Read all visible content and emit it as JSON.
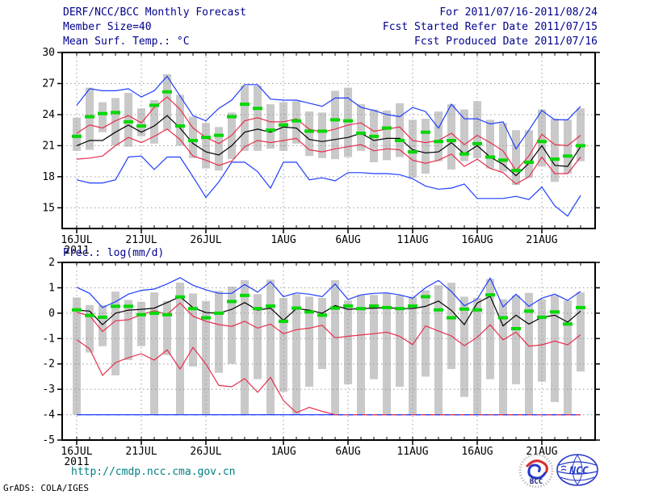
{
  "header": {
    "left_lines": [
      "DERF/NCC/BCC Monthly Forecast",
      "Member Size=40"
    ],
    "right_lines": [
      "For 2011/07/16-2011/08/24",
      "Fcst Started Refer Date 2011/07/15",
      "Fcst Produced Date 2011/07/16"
    ]
  },
  "footer": {
    "url": "http://cmdp.ncc.cma.gov.cn",
    "credit": "GrADS: COLA/IGES",
    "logos": [
      {
        "name": "BCC",
        "label": "BCC"
      },
      {
        "name": "NCC",
        "label": "NCC"
      }
    ]
  },
  "colors": {
    "header": "#00008b",
    "url": "#008080",
    "frame": "#000000",
    "grid": "#999999",
    "bar": "#c9c9c9",
    "blue": "#1e3cff",
    "red": "#e62e4c",
    "black": "#000000",
    "green": "#00d800"
  },
  "chart_data": [
    {
      "type": "line",
      "title": "Mean Surf. Temp.: °C",
      "ylim": [
        13,
        30
      ],
      "yticks": [
        15,
        18,
        21,
        24,
        27,
        30
      ],
      "x_days": 40,
      "x_ticks": [
        {
          "label": "16JUL",
          "sub": "2011",
          "day": 0
        },
        {
          "label": "21JUL",
          "day": 5
        },
        {
          "label": "26JUL",
          "day": 10
        },
        {
          "label": "1AUG",
          "day": 16
        },
        {
          "label": "6AUG",
          "day": 21
        },
        {
          "label": "11AUG",
          "day": 26
        },
        {
          "label": "16AUG",
          "day": 31
        },
        {
          "label": "21AUG",
          "day": 36
        }
      ],
      "bars": {
        "name": "ensemble-spread",
        "lo": [
          20.5,
          20.6,
          22.3,
          21.0,
          20.9,
          21.9,
          21.2,
          22.5,
          21.0,
          19.8,
          18.8,
          18.6,
          19.7,
          20.5,
          20.5,
          20.7,
          20.5,
          21.2,
          20.0,
          19.8,
          19.7,
          19.9,
          20.5,
          19.4,
          19.6,
          19.9,
          17.9,
          18.3,
          19.5,
          18.7,
          19.5,
          19.8,
          18.8,
          18.5,
          17.2,
          17.9,
          19.0,
          17.5,
          18.3,
          19.5
        ],
        "hi": [
          23.7,
          26.6,
          25.2,
          25.6,
          26.1,
          24.6,
          25.4,
          27.9,
          25.9,
          23.8,
          23.2,
          22.8,
          24.2,
          26.8,
          26.8,
          25.0,
          25.2,
          25.3,
          24.3,
          24.2,
          26.3,
          26.6,
          25.0,
          24.5,
          24.4,
          25.1,
          23.5,
          23.6,
          24.3,
          25.0,
          24.5,
          25.3,
          23.5,
          23.2,
          22.5,
          22.5,
          24.5,
          23.6,
          23.5,
          24.6
        ]
      },
      "series": [
        {
          "name": "ensemble-min",
          "color": "blue",
          "values": [
            17.7,
            17.4,
            17.4,
            17.7,
            19.9,
            20.0,
            18.7,
            19.9,
            19.9,
            18.0,
            16.0,
            17.5,
            19.4,
            19.4,
            18.5,
            16.9,
            19.4,
            19.4,
            17.7,
            17.9,
            17.6,
            18.4,
            18.4,
            18.3,
            18.3,
            18.2,
            17.8,
            17.1,
            16.8,
            16.9,
            17.3,
            15.9,
            15.9,
            15.9,
            16.1,
            15.8,
            17.0,
            15.2,
            14.2,
            16.2
          ]
        },
        {
          "name": "mean-minus-sd",
          "color": "red",
          "values": [
            19.7,
            19.8,
            20.0,
            21.0,
            21.8,
            21.3,
            21.9,
            22.6,
            21.6,
            20.0,
            19.6,
            19.1,
            19.5,
            20.9,
            21.5,
            21.3,
            21.5,
            21.7,
            20.6,
            20.4,
            20.7,
            20.9,
            21.1,
            20.5,
            20.7,
            20.6,
            19.6,
            19.3,
            19.6,
            20.2,
            19.0,
            19.7,
            18.8,
            18.4,
            17.3,
            18.0,
            19.9,
            18.3,
            18.3,
            19.9
          ]
        },
        {
          "name": "mean-plus-sd",
          "color": "red",
          "values": [
            22.2,
            23.0,
            22.7,
            23.4,
            23.9,
            23.2,
            24.7,
            25.7,
            24.5,
            22.7,
            21.8,
            21.2,
            22.0,
            23.4,
            23.7,
            23.3,
            23.3,
            23.6,
            22.6,
            22.3,
            22.6,
            23.0,
            23.2,
            22.4,
            22.6,
            22.8,
            21.5,
            21.3,
            21.5,
            22.2,
            21.1,
            22.0,
            21.3,
            20.5,
            18.6,
            20.0,
            22.1,
            21.1,
            21.0,
            22.0
          ]
        },
        {
          "name": "ensemble-mean",
          "color": "black",
          "values": [
            21.0,
            21.5,
            21.5,
            22.3,
            23.0,
            22.3,
            22.9,
            23.9,
            22.7,
            21.2,
            20.4,
            20.1,
            21.0,
            22.3,
            22.6,
            22.3,
            22.8,
            22.7,
            21.6,
            21.4,
            21.6,
            21.8,
            22.2,
            21.5,
            21.7,
            21.7,
            20.6,
            20.3,
            20.4,
            21.3,
            20.2,
            21.0,
            19.9,
            19.2,
            18.1,
            19.3,
            21.0,
            19.1,
            19.0,
            20.9
          ]
        },
        {
          "name": "ensemble-max",
          "color": "blue",
          "values": [
            24.9,
            26.5,
            26.3,
            26.3,
            26.5,
            25.7,
            26.3,
            27.7,
            25.8,
            23.9,
            23.4,
            24.6,
            25.4,
            26.9,
            26.9,
            25.5,
            25.4,
            25.4,
            25.1,
            24.8,
            25.6,
            25.6,
            24.7,
            24.4,
            24.0,
            23.8,
            24.7,
            24.3,
            22.7,
            25.0,
            23.6,
            23.6,
            23.1,
            23.3,
            20.7,
            22.5,
            24.4,
            23.5,
            23.5,
            24.8
          ]
        }
      ],
      "markers": {
        "name": "daily-value",
        "color": "green",
        "values": [
          21.9,
          23.8,
          24.1,
          24.2,
          23.3,
          22.9,
          24.9,
          26.2,
          22.9,
          21.5,
          21.8,
          22.0,
          23.8,
          25.0,
          24.6,
          22.5,
          23.0,
          23.4,
          22.4,
          22.4,
          23.5,
          23.4,
          22.2,
          21.9,
          22.7,
          21.5,
          20.4,
          22.3,
          21.4,
          21.5,
          20.2,
          21.2,
          19.9,
          19.6,
          18.6,
          19.4,
          21.4,
          19.7,
          20.0,
          21.0
        ]
      }
    },
    {
      "type": "line",
      "title": "Prec.: log(mm/d)",
      "ylim": [
        -5,
        2
      ],
      "yticks": [
        -5,
        -4,
        -3,
        -2,
        -1,
        0,
        1,
        2
      ],
      "x_days": 40,
      "x_ticks": [
        {
          "label": "16JUL",
          "sub": "2011",
          "day": 0
        },
        {
          "label": "21JUL",
          "day": 5
        },
        {
          "label": "26JUL",
          "day": 10
        },
        {
          "label": "1AUG",
          "day": 16
        },
        {
          "label": "6AUG",
          "day": 21
        },
        {
          "label": "11AUG",
          "day": 26
        },
        {
          "label": "16AUG",
          "day": 31
        },
        {
          "label": "21AUG",
          "day": 36
        }
      ],
      "bars": {
        "name": "ensemble-spread",
        "lo": [
          -4.0,
          -1.55,
          -1.3,
          -2.45,
          -1.85,
          -1.3,
          -4.0,
          -1.65,
          -4.0,
          -2.1,
          -4.0,
          -2.35,
          -2.0,
          -4.0,
          -2.6,
          -4.0,
          -3.1,
          -4.0,
          -2.9,
          -2.2,
          -4.0,
          -2.8,
          -4.0,
          -2.6,
          -4.0,
          -2.9,
          -4.0,
          -2.5,
          -4.0,
          -2.2,
          -3.3,
          -4.0,
          -2.6,
          -4.0,
          -2.8,
          -4.0,
          -2.7,
          -3.5,
          -4.0,
          -2.3
        ],
        "hi": [
          0.62,
          0.32,
          0.32,
          0.85,
          0.52,
          0.45,
          0.82,
          0.48,
          1.2,
          0.78,
          0.48,
          0.88,
          1.05,
          1.3,
          0.75,
          1.32,
          0.6,
          0.75,
          0.65,
          0.6,
          1.3,
          0.5,
          0.72,
          0.72,
          0.78,
          0.7,
          0.65,
          0.9,
          1.1,
          1.2,
          0.65,
          0.6,
          1.35,
          0.55,
          0.7,
          0.8,
          0.55,
          0.7,
          0.5,
          0.82
        ]
      },
      "series": [
        {
          "name": "ensemble-min",
          "color": "blue",
          "values": [
            -4.0,
            -4.0,
            -4.0,
            -4.0,
            -4.0,
            -4.0,
            -4.0,
            -4.0,
            -4.0,
            -4.0,
            -4.0,
            -4.0,
            -4.0,
            -4.0,
            -4.0,
            -4.0,
            -4.0,
            -4.0,
            -4.0,
            -4.0,
            -4.0,
            -4.0,
            -4.0,
            -4.0,
            -4.0,
            -4.0,
            -4.0,
            -4.0,
            -4.0,
            -4.0,
            -4.0,
            -4.0,
            -4.0,
            -4.0,
            -4.0,
            -4.0,
            -4.0,
            -4.0,
            -4.0,
            -4.0
          ]
        },
        {
          "name": "mean-minus-sd",
          "color": "red",
          "values": [
            -1.05,
            -1.4,
            -2.45,
            -1.95,
            -1.75,
            -1.6,
            -1.85,
            -1.45,
            -2.2,
            -1.35,
            -2.0,
            -2.85,
            -2.9,
            -2.58,
            -3.12,
            -2.53,
            -3.44,
            -3.92,
            -3.71,
            -3.87,
            -4.0,
            -4.0,
            -4.0,
            -4.0,
            -4.0,
            -4.0,
            -4.0,
            -4.0,
            -4.0,
            -4.0,
            -4.0,
            -4.0,
            -4.0,
            -4.0,
            -4.0,
            -4.0,
            -4.0,
            -4.0,
            -4.0,
            -4.0
          ]
        },
        {
          "name": "ensemble-min-overlay",
          "color": "blue",
          "dash": "6,6",
          "values": [
            -4.0,
            -4.0,
            -4.0,
            -4.0,
            -4.0,
            -4.0,
            -4.0,
            -4.0,
            -4.0,
            -4.0,
            -4.0,
            -4.0,
            -4.0,
            -4.0,
            -4.0,
            -4.0,
            -4.0,
            -4.0,
            -4.0,
            -4.0,
            -4.0,
            -4.0,
            -4.0,
            -4.0,
            -4.0,
            -4.0,
            -4.0,
            -4.0,
            -4.0,
            -4.0,
            -4.0,
            -4.0,
            -4.0,
            -4.0,
            -4.0,
            -4.0,
            -4.0,
            -4.0,
            -4.0,
            -4.0
          ]
        },
        {
          "name": "mean-plus-sd",
          "color": "red",
          "values": [
            0.03,
            -0.1,
            -0.72,
            -0.3,
            -0.26,
            -0.06,
            0.1,
            -0.05,
            0.4,
            -0.12,
            -0.32,
            -0.45,
            -0.52,
            -0.32,
            -0.59,
            -0.43,
            -0.81,
            -0.65,
            -0.59,
            -0.48,
            -0.97,
            -0.91,
            -0.86,
            -0.81,
            -0.75,
            -0.91,
            -1.24,
            -0.5,
            -0.7,
            -0.9,
            -1.28,
            -0.95,
            -0.46,
            -1.05,
            -0.75,
            -1.3,
            -1.25,
            -1.1,
            -1.25,
            -0.85
          ]
        },
        {
          "name": "ensemble-mean",
          "color": "black",
          "values": [
            0.12,
            0.08,
            -0.45,
            0.0,
            0.12,
            0.15,
            0.2,
            0.42,
            0.65,
            0.22,
            0.02,
            0.0,
            0.15,
            0.42,
            0.12,
            0.2,
            -0.28,
            0.18,
            0.12,
            0.0,
            0.3,
            0.15,
            0.18,
            0.2,
            0.22,
            0.18,
            0.18,
            0.27,
            0.48,
            0.11,
            -0.45,
            0.4,
            0.67,
            -0.5,
            -0.08,
            -0.43,
            -0.16,
            -0.08,
            -0.35,
            0.08
          ]
        },
        {
          "name": "ensemble-max",
          "color": "blue",
          "values": [
            1.02,
            0.78,
            0.22,
            0.45,
            0.75,
            0.9,
            0.95,
            1.15,
            1.4,
            1.1,
            0.92,
            0.78,
            0.78,
            1.13,
            0.83,
            1.24,
            0.65,
            0.8,
            0.75,
            0.65,
            1.15,
            0.54,
            0.72,
            0.78,
            0.8,
            0.72,
            0.59,
            1.0,
            1.29,
            0.85,
            0.29,
            0.55,
            1.38,
            0.25,
            0.75,
            0.27,
            0.59,
            0.75,
            0.5,
            0.86
          ]
        }
      ],
      "markers": {
        "name": "daily-value",
        "color": "green",
        "values": [
          0.13,
          -0.09,
          -0.16,
          0.27,
          0.27,
          -0.06,
          0.0,
          -0.06,
          0.64,
          0.18,
          -0.18,
          0.0,
          0.46,
          0.7,
          0.18,
          0.28,
          -0.32,
          0.2,
          0.05,
          -0.08,
          0.2,
          0.28,
          0.18,
          0.28,
          0.22,
          0.18,
          0.28,
          0.65,
          0.13,
          -0.18,
          0.16,
          0.13,
          0.72,
          -0.18,
          -0.61,
          0.08,
          -0.16,
          0.05,
          -0.43,
          0.22
        ]
      }
    }
  ]
}
